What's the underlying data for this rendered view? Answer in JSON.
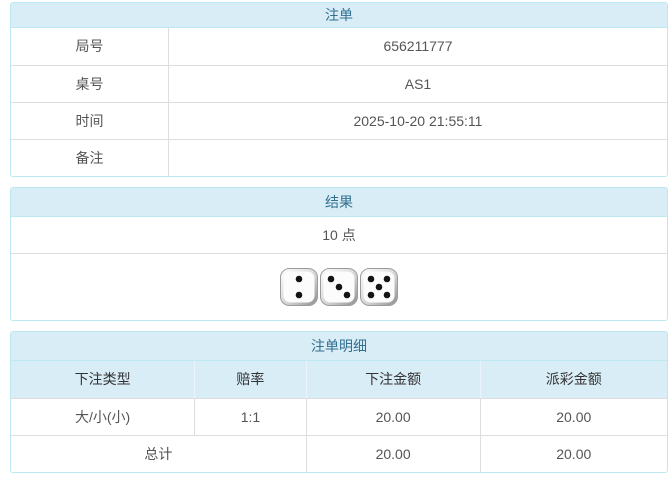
{
  "colors": {
    "header_bg": "#d9edf7",
    "header_text": "#31708f",
    "panel_border": "#bce8f1",
    "row_border": "#dddddd",
    "text": "#555555",
    "thead_text": "#333333",
    "odds_red": "#ff0000"
  },
  "bet_panel": {
    "title": "注单",
    "rows": [
      {
        "label": "局号",
        "value": "656211777"
      },
      {
        "label": "桌号",
        "value": "AS1"
      },
      {
        "label": "时间",
        "value": "2025-10-20 21:55:11"
      },
      {
        "label": "备注",
        "value": ""
      }
    ]
  },
  "result_panel": {
    "title": "结果",
    "points": "10 点",
    "dice": [
      2,
      3,
      5
    ]
  },
  "detail_panel": {
    "title": "注单明细",
    "columns": [
      "下注类型",
      "赔率",
      "下注金额",
      "派彩金额"
    ],
    "rows": [
      {
        "bet_type": "大/小(小)",
        "odds": "1:1",
        "bet_amount": "20.00",
        "payout": "20.00"
      }
    ],
    "total": {
      "label": "总计",
      "bet_amount": "20.00",
      "payout": "20.00"
    }
  }
}
